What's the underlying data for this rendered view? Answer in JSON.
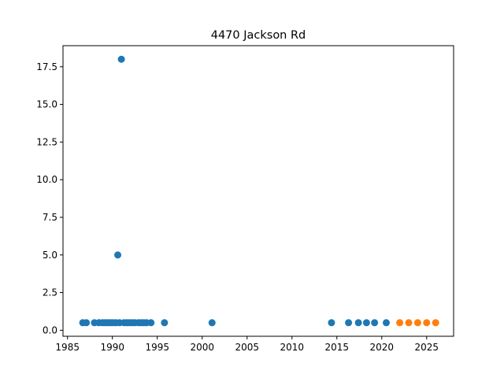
{
  "chart_data": {
    "type": "scatter",
    "title": "4470 Jackson Rd",
    "xlabel": "",
    "ylabel": "",
    "xlim": [
      1984.5,
      2028.0
    ],
    "ylim": [
      -0.4,
      18.9
    ],
    "xticks": [
      1985,
      1990,
      1995,
      2000,
      2005,
      2010,
      2015,
      2020,
      2025
    ],
    "yticks": [
      0.0,
      2.5,
      5.0,
      7.5,
      10.0,
      12.5,
      15.0,
      17.5
    ],
    "ytick_labels": [
      "0.0",
      "2.5",
      "5.0",
      "7.5",
      "10.0",
      "12.5",
      "15.0",
      "17.5"
    ],
    "grid": false,
    "series": [
      {
        "color": "#1f77b4",
        "points": [
          [
            1986.7,
            0.5
          ],
          [
            1987.1,
            0.5
          ],
          [
            1988.0,
            0.5
          ],
          [
            1988.5,
            0.5
          ],
          [
            1988.9,
            0.5
          ],
          [
            1989.2,
            0.5
          ],
          [
            1989.5,
            0.5
          ],
          [
            1989.8,
            0.5
          ],
          [
            1990.1,
            0.5
          ],
          [
            1990.4,
            0.5
          ],
          [
            1990.6,
            5.0
          ],
          [
            1990.8,
            0.5
          ],
          [
            1991.0,
            18.0
          ],
          [
            1991.3,
            0.5
          ],
          [
            1991.6,
            0.5
          ],
          [
            1991.9,
            0.5
          ],
          [
            1992.2,
            0.5
          ],
          [
            1992.5,
            0.5
          ],
          [
            1992.9,
            0.5
          ],
          [
            1993.2,
            0.5
          ],
          [
            1993.5,
            0.5
          ],
          [
            1993.8,
            0.5
          ],
          [
            1994.3,
            0.5
          ],
          [
            1995.8,
            0.5
          ],
          [
            2001.1,
            0.5
          ],
          [
            2014.4,
            0.5
          ],
          [
            2016.3,
            0.5
          ],
          [
            2017.4,
            0.5
          ],
          [
            2018.3,
            0.5
          ],
          [
            2019.2,
            0.5
          ],
          [
            2020.5,
            0.5
          ]
        ]
      },
      {
        "color": "#ff7f0e",
        "points": [
          [
            2022.0,
            0.5
          ],
          [
            2023.0,
            0.5
          ],
          [
            2024.0,
            0.5
          ],
          [
            2025.0,
            0.5
          ],
          [
            2026.0,
            0.5
          ]
        ]
      }
    ]
  }
}
